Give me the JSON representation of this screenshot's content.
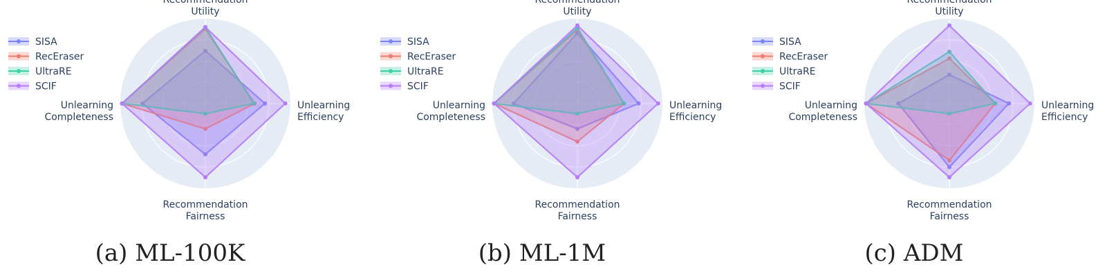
{
  "chart_data": [
    {
      "type": "radar",
      "caption": "(a)  ML-100K",
      "axes": [
        [
          "Recommendation",
          "Utility"
        ],
        [
          "Unlearning",
          "Efficiency"
        ],
        [
          "Recommendation",
          "Fairness"
        ],
        [
          "Unlearning",
          "Completeness"
        ]
      ],
      "rmax": 1.0,
      "grid": true,
      "legend_position": "top-left",
      "series": [
        {
          "name": "SISA",
          "values": [
            0.62,
            0.7,
            0.6,
            0.74
          ]
        },
        {
          "name": "RecEraser",
          "values": [
            0.88,
            0.58,
            0.3,
            0.98
          ]
        },
        {
          "name": "UltraRE",
          "values": [
            0.9,
            0.57,
            0.12,
            0.98
          ]
        },
        {
          "name": "SCIF",
          "values": [
            0.9,
            0.94,
            0.87,
            0.98
          ]
        }
      ]
    },
    {
      "type": "radar",
      "caption": "(b)  ML-1M",
      "axes": [
        [
          "Recommendation",
          "Utility"
        ],
        [
          "Unlearning",
          "Efficiency"
        ],
        [
          "Recommendation",
          "Fairness"
        ],
        [
          "Unlearning",
          "Completeness"
        ]
      ],
      "rmax": 1.0,
      "grid": true,
      "legend_position": "top-left",
      "series": [
        {
          "name": "SISA",
          "values": [
            0.83,
            0.72,
            0.3,
            0.75
          ]
        },
        {
          "name": "RecEraser",
          "values": [
            0.87,
            0.55,
            0.45,
            0.98
          ]
        },
        {
          "name": "UltraRE",
          "values": [
            0.89,
            0.55,
            0.12,
            0.98
          ]
        },
        {
          "name": "SCIF",
          "values": [
            0.92,
            0.95,
            0.87,
            0.98
          ]
        }
      ]
    },
    {
      "type": "radar",
      "caption": "(c)  ADM",
      "axes": [
        [
          "Recommendation",
          "Utility"
        ],
        [
          "Unlearning",
          "Efficiency"
        ],
        [
          "Recommendation",
          "Fairness"
        ],
        [
          "Unlearning",
          "Completeness"
        ]
      ],
      "rmax": 1.0,
      "grid": true,
      "legend_position": "top-left",
      "series": [
        {
          "name": "SISA",
          "values": [
            0.34,
            0.7,
            0.75,
            0.6
          ]
        },
        {
          "name": "RecEraser",
          "values": [
            0.53,
            0.54,
            0.67,
            0.98
          ]
        },
        {
          "name": "UltraRE",
          "values": [
            0.61,
            0.54,
            0.12,
            0.98
          ]
        },
        {
          "name": "SCIF",
          "values": [
            0.92,
            0.95,
            0.87,
            0.98
          ]
        }
      ]
    }
  ],
  "style": {
    "series_colors": [
      "#7b83f5",
      "#ee7c6c",
      "#3fcfa4",
      "#b57bfa"
    ],
    "polar_bg": "#e5ecf6",
    "grid_color": "#ffffff",
    "text_color": "#2a3f5f"
  }
}
